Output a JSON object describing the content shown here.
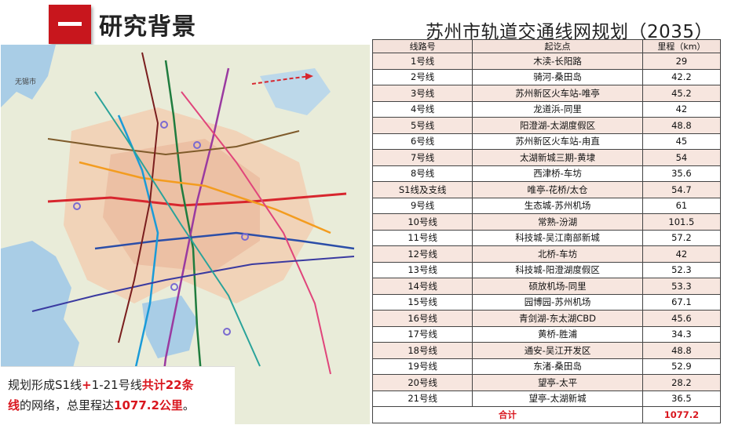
{
  "heading": {
    "title": "研究背景"
  },
  "plan": {
    "title": "苏州市轨道交通线网规划（2035）"
  },
  "map_labels": {
    "wuxi": "无锡市"
  },
  "caption": {
    "part1": "规划形成S1线",
    "plus": "+",
    "part2": "1-21号线",
    "part3": "共计22条",
    "part4": "线",
    "part5": "的网络，总里程达",
    "part6": "1077.2公里",
    "part7": "。"
  },
  "table": {
    "headers": [
      "线路号",
      "起讫点",
      "里程（km）"
    ],
    "rows": [
      [
        "1号线",
        "木渎-长阳路",
        "29"
      ],
      [
        "2号线",
        "骑河-桑田岛",
        "42.2"
      ],
      [
        "3号线",
        "苏州新区火车站-唯亭",
        "45.2"
      ],
      [
        "4号线",
        "龙道浜-同里",
        "42"
      ],
      [
        "5号线",
        "阳澄湖-太湖度假区",
        "48.8"
      ],
      [
        "6号线",
        "苏州新区火车站-甪直",
        "45"
      ],
      [
        "7号线",
        "太湖新城三期-黄埭",
        "54"
      ],
      [
        "8号线",
        "西津桥-车坊",
        "35.6"
      ],
      [
        "S1线及支线",
        "唯亭-花桥/太仓",
        "54.7"
      ],
      [
        "9号线",
        "生态城-苏州机场",
        "61"
      ],
      [
        "10号线",
        "常熟-汾湖",
        "101.5"
      ],
      [
        "11号线",
        "科技城-吴江南部新城",
        "57.2"
      ],
      [
        "12号线",
        "北桥-车坊",
        "42"
      ],
      [
        "13号线",
        "科技城-阳澄湖度假区",
        "52.3"
      ],
      [
        "14号线",
        "硕放机场-同里",
        "53.3"
      ],
      [
        "15号线",
        "园博园-苏州机场",
        "67.1"
      ],
      [
        "16号线",
        "青剑湖-东太湖CBD",
        "45.6"
      ],
      [
        "17号线",
        "黄桥-胜浦",
        "34.3"
      ],
      [
        "18号线",
        "通安-吴江开发区",
        "48.8"
      ],
      [
        "19号线",
        "东渚-桑田岛",
        "52.9"
      ],
      [
        "20号线",
        "望亭-太平",
        "28.2"
      ],
      [
        "21号线",
        "望亭-太湖新城",
        "36.5"
      ]
    ],
    "total": {
      "label": "合计",
      "value": "1077.2"
    }
  }
}
